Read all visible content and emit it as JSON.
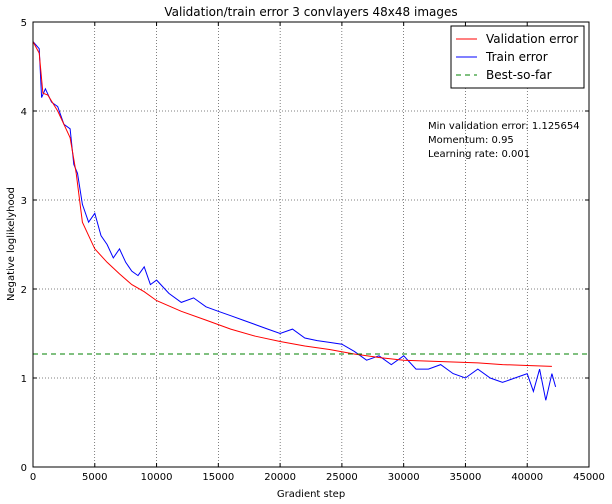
{
  "chart_data": {
    "type": "line",
    "title": "Validation/train error 3 convlayers 48x48 images",
    "xlabel": "Gradient step",
    "ylabel": "Negative loglikelyhood",
    "xlim": [
      0,
      45000
    ],
    "ylim": [
      0,
      5
    ],
    "xticks": [
      0,
      5000,
      10000,
      15000,
      20000,
      25000,
      30000,
      35000,
      40000,
      45000
    ],
    "yticks": [
      0,
      1,
      2,
      3,
      4,
      5
    ],
    "grid": true,
    "legend_position": "top-right",
    "series": [
      {
        "name": "Validation error",
        "color": "#ff0000",
        "x": [
          0,
          500,
          800,
          1200,
          2000,
          2500,
          3000,
          3500,
          4000,
          4500,
          5000,
          6000,
          7000,
          8000,
          9000,
          10000,
          12000,
          14000,
          16000,
          18000,
          20000,
          22000,
          24000,
          26000,
          28000,
          30000,
          32000,
          34000,
          36000,
          38000,
          40000,
          42000
        ],
        "y": [
          4.78,
          4.65,
          4.2,
          4.18,
          4.0,
          3.85,
          3.7,
          3.3,
          2.75,
          2.6,
          2.45,
          2.3,
          2.17,
          2.05,
          1.97,
          1.87,
          1.75,
          1.65,
          1.55,
          1.47,
          1.41,
          1.36,
          1.32,
          1.27,
          1.23,
          1.2,
          1.19,
          1.18,
          1.17,
          1.15,
          1.14,
          1.13
        ]
      },
      {
        "name": "Train error",
        "color": "#0000ff",
        "x": [
          0,
          500,
          700,
          1000,
          1500,
          2000,
          2500,
          3000,
          3300,
          3600,
          4000,
          4500,
          5000,
          5500,
          6000,
          6500,
          7000,
          7500,
          8000,
          8500,
          9000,
          9500,
          10000,
          11000,
          12000,
          13000,
          14000,
          15000,
          16000,
          17000,
          18000,
          19000,
          20000,
          21000,
          22000,
          23000,
          24000,
          25000,
          26000,
          27000,
          28000,
          29000,
          30000,
          31000,
          32000,
          33000,
          34000,
          35000,
          36000,
          37000,
          38000,
          39000,
          40000,
          40500,
          41000,
          41500,
          42000,
          42300
        ],
        "y": [
          4.78,
          4.7,
          4.15,
          4.25,
          4.1,
          4.05,
          3.85,
          3.8,
          3.4,
          3.3,
          2.95,
          2.75,
          2.85,
          2.6,
          2.5,
          2.35,
          2.45,
          2.3,
          2.2,
          2.15,
          2.25,
          2.05,
          2.1,
          1.95,
          1.85,
          1.9,
          1.8,
          1.75,
          1.7,
          1.65,
          1.6,
          1.55,
          1.5,
          1.55,
          1.45,
          1.42,
          1.4,
          1.38,
          1.3,
          1.2,
          1.25,
          1.15,
          1.25,
          1.1,
          1.1,
          1.15,
          1.05,
          1.0,
          1.1,
          1.0,
          0.95,
          1.0,
          1.05,
          0.85,
          1.1,
          0.75,
          1.05,
          0.9
        ]
      },
      {
        "name": "Best-so-far",
        "color": "#008000",
        "style": "dashed",
        "x": [
          0,
          45000
        ],
        "y": [
          1.27,
          1.27
        ]
      }
    ],
    "annotations": [
      "Min validation error: 1.125654",
      "Momentum: 0.95",
      "Learning rate: 0.001"
    ]
  }
}
